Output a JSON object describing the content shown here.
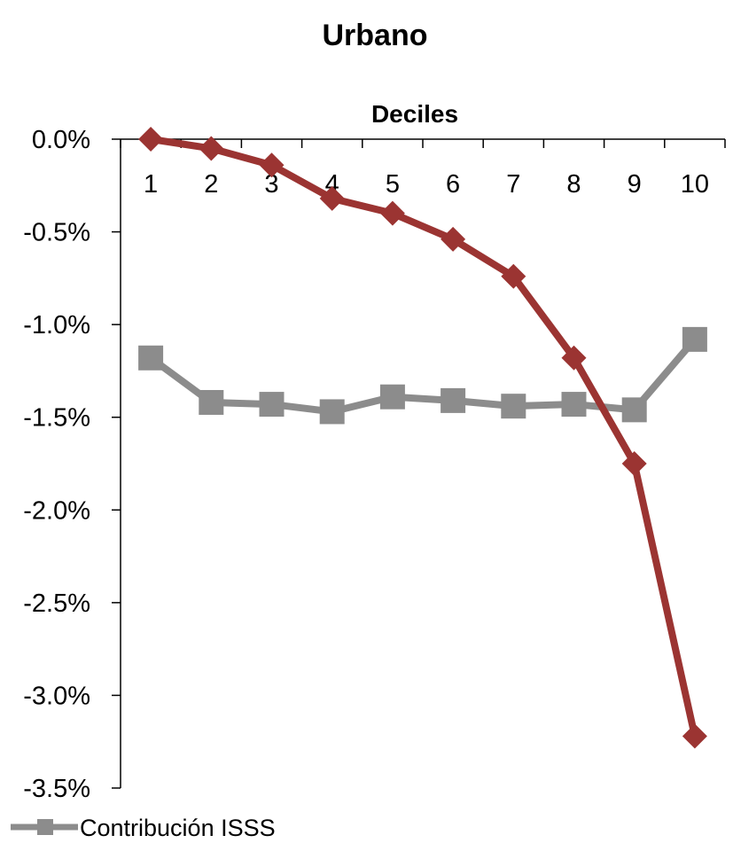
{
  "chart_data": {
    "type": "line",
    "title": "Urbano",
    "xlabel": "Deciles",
    "ylabel": "",
    "categories": [
      "1",
      "2",
      "3",
      "4",
      "5",
      "6",
      "7",
      "8",
      "9",
      "10"
    ],
    "y_ticks": [
      "0.0%",
      "-0.5%",
      "-1.0%",
      "-1.5%",
      "-2.0%",
      "-2.5%",
      "-3.0%",
      "-3.5%"
    ],
    "ylim": [
      -3.5,
      0
    ],
    "x_axis_position": "top",
    "grid": false,
    "legend": {
      "placement": "bottom-left",
      "entries": [
        "Contribución ISSS"
      ]
    },
    "series": [
      {
        "name": "Contribución ISSS",
        "color": "#8c8c8c",
        "marker": "square",
        "in_legend": true,
        "values": [
          -1.18,
          -1.42,
          -1.43,
          -1.47,
          -1.39,
          -1.41,
          -1.44,
          -1.43,
          -1.46,
          -1.08
        ]
      },
      {
        "color": "#9b3432",
        "marker": "diamond",
        "in_legend": false,
        "values": [
          0.0,
          -0.05,
          -0.14,
          -0.32,
          -0.4,
          -0.54,
          -0.74,
          -1.18,
          -1.75,
          -3.22
        ]
      }
    ]
  }
}
